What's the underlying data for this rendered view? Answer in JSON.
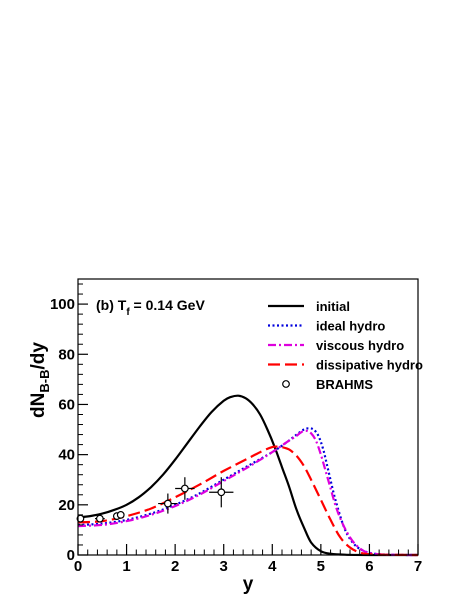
{
  "chart_data": {
    "type": "line",
    "xlabel": "y",
    "ylabel": {
      "main": "dN",
      "sub": "B-B",
      "tail": "/dy"
    },
    "annotation": {
      "prefix": "(b) T",
      "sub": "f",
      "suffix": " = 0.14 GeV"
    },
    "xlim": [
      0,
      7
    ],
    "ylim": [
      0,
      110
    ],
    "x_ticks": [
      0,
      1,
      2,
      3,
      4,
      5,
      6,
      7
    ],
    "y_ticks": [
      0,
      20,
      40,
      60,
      80,
      100
    ],
    "grid": false,
    "legend_position": "top-right",
    "series": [
      {
        "name": "initial",
        "color": "#000000",
        "style": "solid",
        "x": [
          0,
          0.25,
          0.5,
          0.75,
          1.0,
          1.25,
          1.5,
          1.75,
          2.0,
          2.25,
          2.5,
          2.75,
          3.0,
          3.15,
          3.3,
          3.45,
          3.6,
          3.75,
          3.9,
          4.05,
          4.2,
          4.35,
          4.5,
          4.65,
          4.8,
          5.0,
          5.2,
          5.5,
          6.0,
          7.0
        ],
        "y": [
          15,
          15.5,
          16.5,
          18,
          20,
          23,
          27,
          32,
          38,
          44.5,
          51,
          57,
          61.5,
          63,
          63.5,
          62.5,
          60,
          56,
          50,
          43,
          35,
          27,
          18,
          11,
          5,
          1.5,
          0.5,
          0.1,
          0,
          0
        ]
      },
      {
        "name": "ideal hydro",
        "color": "#0000dd",
        "style": "dotted",
        "x": [
          0,
          0.5,
          1.0,
          1.5,
          2.0,
          2.5,
          3.0,
          3.5,
          4.0,
          4.3,
          4.5,
          4.65,
          4.75,
          4.85,
          4.95,
          5.05,
          5.15,
          5.3,
          5.5,
          5.7,
          5.9,
          6.1,
          6.4,
          7.0
        ],
        "y": [
          12,
          12.5,
          14,
          16.5,
          20,
          24.5,
          30,
          35.5,
          41,
          45,
          48,
          50,
          50.5,
          50,
          47.5,
          42,
          34,
          22,
          10,
          4,
          1.5,
          0.5,
          0.1,
          0
        ]
      },
      {
        "name": "viscous hydro",
        "color": "#dd00dd",
        "style": "dashdot",
        "x": [
          0,
          0.5,
          1.0,
          1.5,
          2.0,
          2.5,
          3.0,
          3.5,
          4.0,
          4.3,
          4.5,
          4.6,
          4.7,
          4.8,
          4.9,
          5.0,
          5.15,
          5.35,
          5.6,
          5.85,
          6.1,
          6.4,
          7.0
        ],
        "y": [
          11.5,
          12,
          13.5,
          16,
          19.5,
          24,
          29.5,
          35,
          41,
          45,
          47.5,
          49,
          49.5,
          48.5,
          45.5,
          40,
          30,
          17,
          7,
          2,
          0.5,
          0.1,
          0
        ]
      },
      {
        "name": "dissipative hydro",
        "color": "#ff0000",
        "style": "dashed",
        "x": [
          0,
          0.5,
          1.0,
          1.5,
          2.0,
          2.5,
          3.0,
          3.5,
          3.8,
          4.0,
          4.1,
          4.2,
          4.35,
          4.5,
          4.65,
          4.8,
          5.0,
          5.2,
          5.4,
          5.6,
          5.8,
          6.0,
          6.3,
          7.0
        ],
        "y": [
          13,
          13.5,
          15.5,
          18.5,
          23,
          28,
          33.5,
          38.5,
          41.5,
          43,
          43.2,
          43,
          42,
          39.5,
          35.5,
          30,
          22,
          14,
          7,
          3,
          1,
          0.3,
          0.1,
          0
        ]
      },
      {
        "name": "BRAHMS",
        "color": "#000000",
        "style": "marker-open-circle",
        "x": [
          0.05,
          0.45,
          0.8,
          0.88,
          1.85,
          2.2,
          2.95
        ],
        "y": [
          14.5,
          14.5,
          15.5,
          16.0,
          20.5,
          26.5,
          25.0
        ],
        "xerr": [
          0.05,
          0.1,
          0.05,
          0.05,
          0.2,
          0.2,
          0.25
        ],
        "yerr": [
          1.5,
          1.5,
          1.5,
          1.5,
          4.0,
          4.5,
          6.0
        ]
      }
    ]
  }
}
